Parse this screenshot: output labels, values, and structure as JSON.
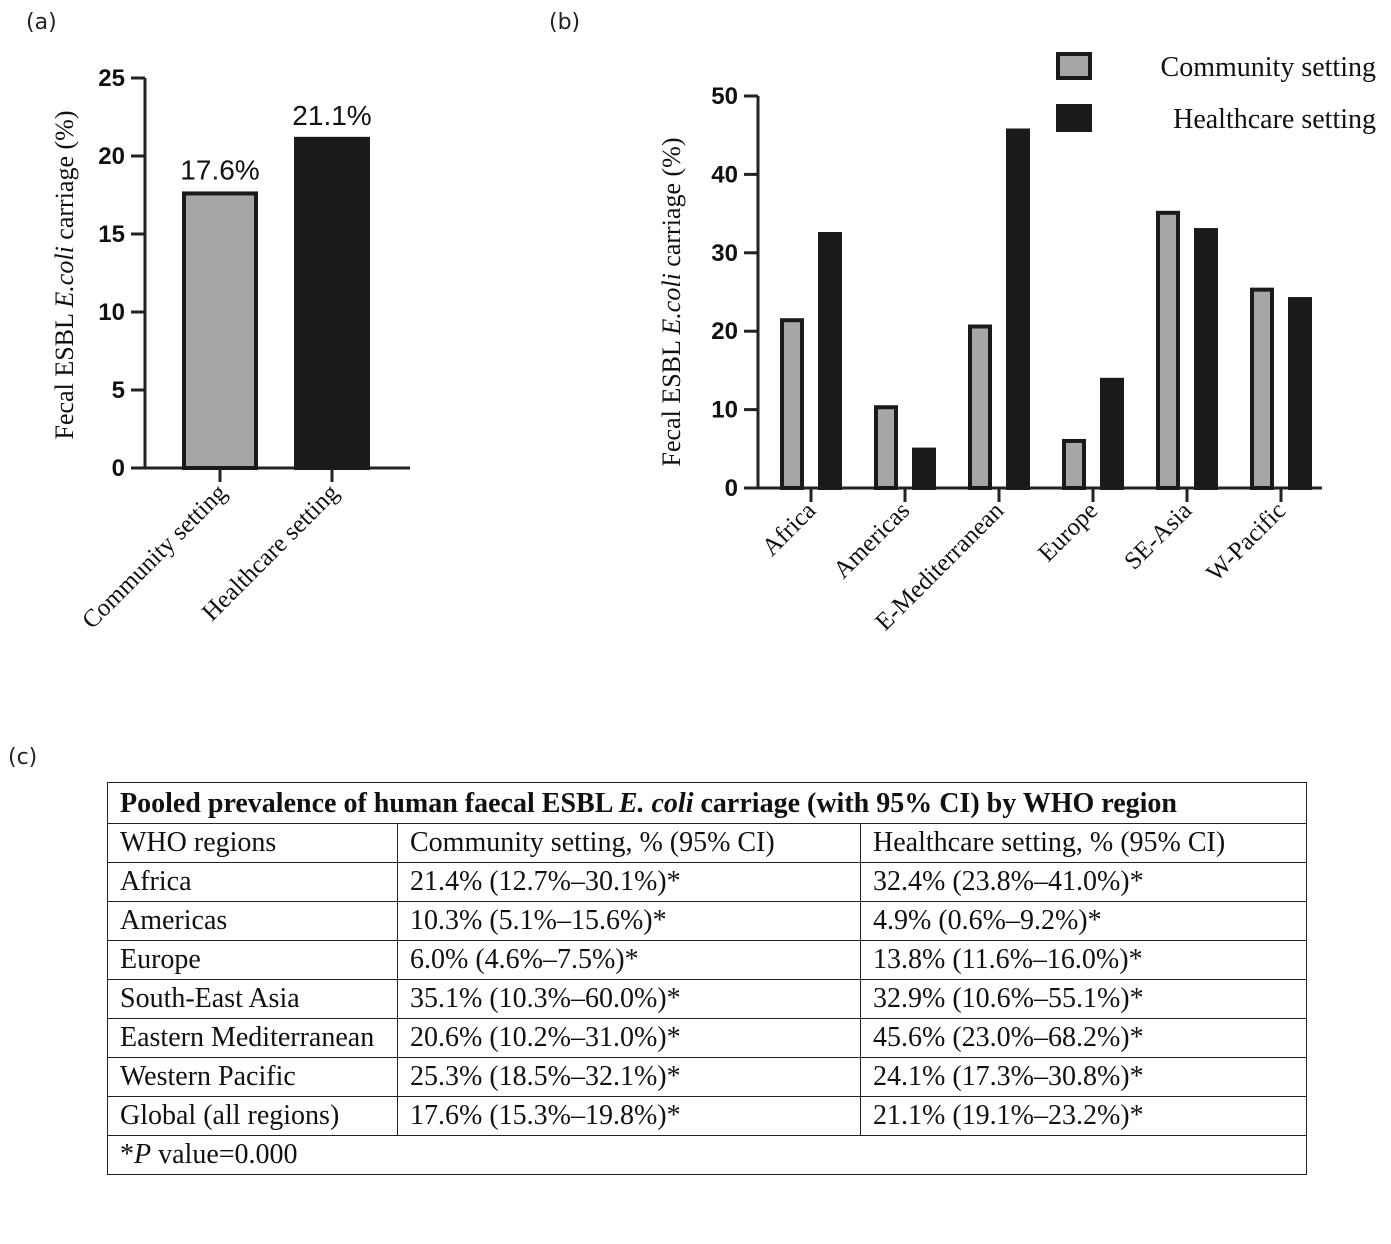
{
  "labels": {
    "a": "(a)",
    "b": "(b)",
    "c": "(c)"
  },
  "chart_data": [
    {
      "type": "bar",
      "panel": "(a)",
      "categories": [
        "Community setting",
        "Healthcare setting"
      ],
      "values": [
        17.6,
        21.1
      ],
      "data_labels": [
        "17.6%",
        "21.1%"
      ],
      "colors": [
        "#a6a6a6",
        "#1a1a1a"
      ],
      "ylabel_prefix": "Fecal ESBL ",
      "ylabel_italic": "E.coli",
      "ylabel_suffix": " carriage (%)",
      "ylim": [
        0,
        25
      ],
      "yticks": [
        "0",
        "5",
        "10",
        "15",
        "20",
        "25"
      ]
    },
    {
      "type": "bar",
      "panel": "(b)",
      "categories": [
        "Africa",
        "Americas",
        "E-Mediterranean",
        "Europe",
        "SE-Asia",
        "W-Pacific"
      ],
      "series": [
        {
          "name": "Community setting",
          "color": "#a6a6a6",
          "values": [
            21.4,
            10.3,
            20.6,
            6.0,
            35.1,
            25.3
          ]
        },
        {
          "name": "Healthcare setting",
          "color": "#1a1a1a",
          "values": [
            32.4,
            4.9,
            45.6,
            13.8,
            32.9,
            24.1
          ]
        }
      ],
      "ylabel_prefix": "Fecal ESBL ",
      "ylabel_italic": "E.coli",
      "ylabel_suffix": " carriage (%)",
      "ylim": [
        0,
        50
      ],
      "yticks": [
        "0",
        "10",
        "20",
        "30",
        "40",
        "50"
      ],
      "legend": "top-right"
    }
  ],
  "table": {
    "title_prefix": "Pooled prevalence of human faecal ESBL ",
    "title_italic": "E. coli",
    "title_suffix": " carriage (with 95% CI) by WHO region",
    "headers": [
      "WHO regions",
      "Community setting, % (95% CI)",
      "Healthcare setting, % (95% CI)"
    ],
    "rows": [
      [
        "Africa",
        "21.4% (12.7%–30.1%)*",
        "32.4% (23.8%–41.0%)*"
      ],
      [
        "Americas",
        "10.3% (5.1%–15.6%)*",
        "4.9% (0.6%–9.2%)*"
      ],
      [
        "Europe",
        "6.0% (4.6%–7.5%)*",
        "13.8% (11.6%–16.0%)*"
      ],
      [
        "South-East Asia",
        "35.1% (10.3%–60.0%)*",
        "32.9% (10.6%–55.1%)*"
      ],
      [
        "Eastern Mediterranean",
        "20.6% (10.2%–31.0%)*",
        "45.6% (23.0%–68.2%)*"
      ],
      [
        "Western Pacific",
        "25.3% (18.5%–32.1%)*",
        "24.1% (17.3%–30.8%)*"
      ],
      [
        "Global (all regions)",
        "17.6% (15.3%–19.8%)*",
        "21.1% (19.1%–23.2%)*"
      ]
    ],
    "note_star": "*",
    "note_italic": "P",
    "note_rest": " value=0.000"
  }
}
